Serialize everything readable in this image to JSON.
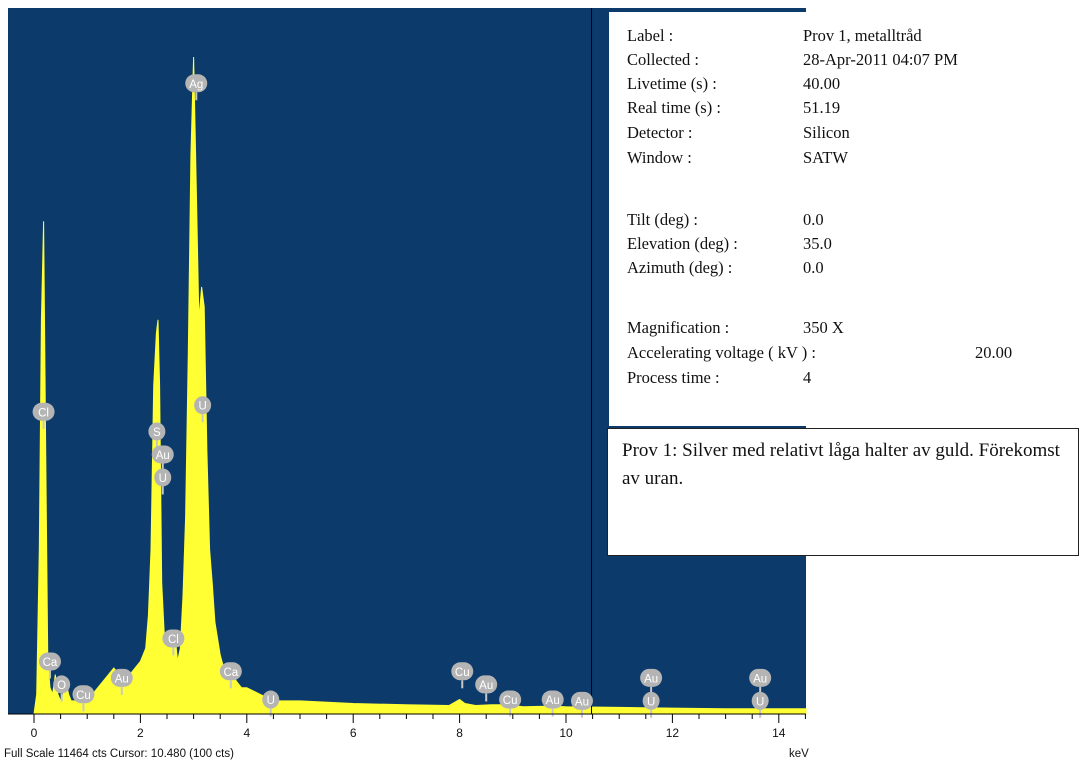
{
  "chart_data": {
    "type": "line",
    "xlim": [
      -0.5,
      14.6
    ],
    "ylim": [
      0,
      100
    ],
    "x_ticks": [
      "0",
      "2",
      "4",
      "6",
      "8",
      "10",
      "12",
      "14"
    ],
    "x_tick_values": [
      0,
      2,
      4,
      6,
      8,
      10,
      12,
      14
    ],
    "xlabel": "keV",
    "cursor_x": 10.48,
    "plot_background": "#0c3a6b",
    "fill_color": "#ffff33",
    "spectrum": {
      "x": [
        0,
        0.05,
        0.1,
        0.14,
        0.18,
        0.22,
        0.26,
        0.3,
        0.35,
        0.4,
        0.45,
        0.5,
        0.55,
        0.6,
        0.65,
        0.7,
        0.8,
        0.9,
        1.0,
        1.1,
        1.2,
        1.3,
        1.4,
        1.5,
        1.6,
        1.7,
        1.8,
        1.9,
        2.0,
        2.1,
        2.15,
        2.2,
        2.25,
        2.3,
        2.33,
        2.36,
        2.4,
        2.45,
        2.5,
        2.55,
        2.6,
        2.65,
        2.7,
        2.75,
        2.8,
        2.85,
        2.9,
        2.95,
        3.0,
        3.05,
        3.1,
        3.15,
        3.2,
        3.25,
        3.3,
        3.35,
        3.4,
        3.5,
        3.6,
        3.7,
        3.8,
        3.9,
        4.0,
        4.5,
        5,
        6,
        7,
        7.8,
        8.0,
        8.1,
        8.3,
        8.6,
        8.9,
        9.2,
        9.7,
        10,
        11,
        12,
        13,
        14,
        14.6
      ],
      "y": [
        0,
        3,
        25,
        60,
        75,
        40,
        8,
        4,
        3,
        6,
        3,
        2,
        3,
        5,
        3,
        2,
        2,
        3,
        4,
        3,
        4,
        5,
        6,
        7,
        6,
        6,
        6,
        7,
        8,
        10,
        15,
        25,
        50,
        58,
        60,
        50,
        20,
        12,
        10,
        11,
        10,
        12,
        8,
        10,
        18,
        30,
        55,
        85,
        100,
        80,
        60,
        65,
        62,
        40,
        25,
        20,
        14,
        9,
        6,
        7,
        5,
        4,
        4,
        2,
        2,
        1.6,
        1.4,
        1.3,
        2.2,
        1.6,
        1.3,
        1.4,
        1.4,
        1.1,
        1.2,
        1.1,
        1.0,
        0.9,
        0.8,
        0.8,
        0.8
      ]
    },
    "peak_labels": [
      {
        "text": "Ag",
        "x": 3.05,
        "y": 96
      },
      {
        "text": "Cl",
        "x": 0.18,
        "y": 46
      },
      {
        "text": "U",
        "x": 3.17,
        "y": 47
      },
      {
        "text": "S",
        "x": 2.31,
        "y": 43
      },
      {
        "text": "Au",
        "x": 2.42,
        "y": 39.5
      },
      {
        "text": "U",
        "x": 2.42,
        "y": 36
      },
      {
        "text": "Cl",
        "x": 2.62,
        "y": 11.5
      },
      {
        "text": "Ca",
        "x": 0.3,
        "y": 8
      },
      {
        "text": "O",
        "x": 0.52,
        "y": 4.5
      },
      {
        "text": "Cu",
        "x": 0.93,
        "y": 3
      },
      {
        "text": "Au",
        "x": 1.65,
        "y": 5.5
      },
      {
        "text": "Ca",
        "x": 3.7,
        "y": 6.5
      },
      {
        "text": "U",
        "x": 4.45,
        "y": 2.2
      },
      {
        "text": "Cu",
        "x": 8.05,
        "y": 6.5
      },
      {
        "text": "Au",
        "x": 8.5,
        "y": 4.5
      },
      {
        "text": "Cu",
        "x": 8.95,
        "y": 2.2
      },
      {
        "text": "Au",
        "x": 9.75,
        "y": 2.2
      },
      {
        "text": "Au",
        "x": 10.3,
        "y": 2
      },
      {
        "text": "Au",
        "x": 11.6,
        "y": 5.5
      },
      {
        "text": "U",
        "x": 11.6,
        "y": 2
      },
      {
        "text": "Au",
        "x": 13.65,
        "y": 5.5
      },
      {
        "text": "U",
        "x": 13.65,
        "y": 2
      }
    ]
  },
  "metadata": [
    {
      "label": "Label :",
      "value": "Prov 1, metalltråd"
    },
    {
      "label": "Collected :",
      "value": "28-Apr-2011 04:07 PM"
    },
    {
      "label": "Livetime (s) :",
      "value": "40.00"
    },
    {
      "label": "Real time (s) :",
      "value": "51.19"
    },
    {
      "label": "Detector :",
      "value": "Silicon"
    },
    {
      "label": "Window :",
      "value": "SATW"
    },
    {
      "label": "Tilt (deg) :",
      "value": " 0.0"
    },
    {
      "label": "Elevation (deg) :",
      "value": "35.0"
    },
    {
      "label": "Azimuth (deg) :",
      "value": "0.0"
    },
    {
      "label": "Magnification :",
      "value": "350 X"
    },
    {
      "label": "Accelerating voltage ( kV ) :",
      "value": "20.00"
    },
    {
      "label": "Process time :",
      "value": "4"
    }
  ],
  "comment": "Prov 1: Silver med relativt låga halter av guld. Förekomst av uran.",
  "footer": "Full Scale 11464 cts Cursor: 10.480  (100 cts)",
  "unit": "keV"
}
